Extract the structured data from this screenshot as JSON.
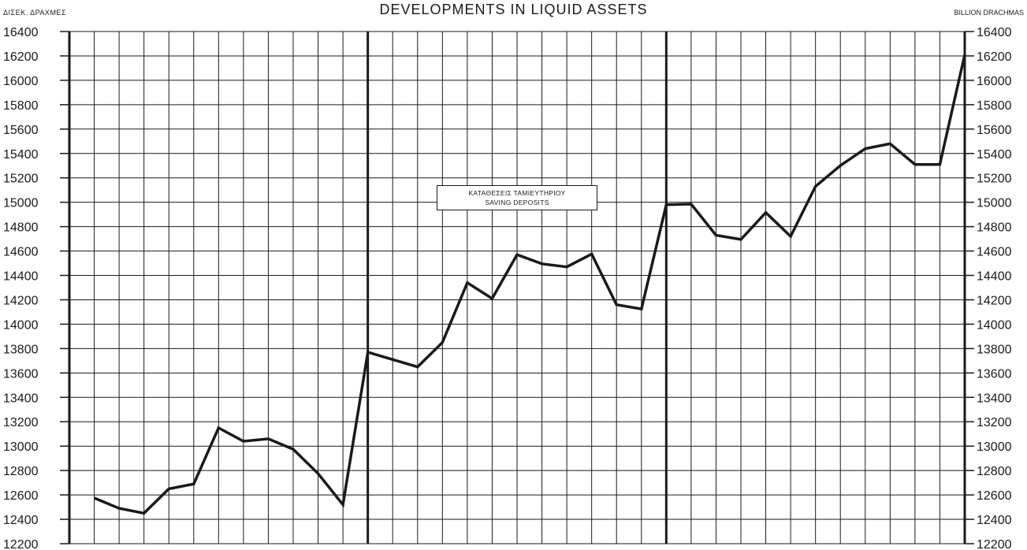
{
  "title": "DEVELOPMENTS IN LIQUID ASSETS",
  "unit_left": "ΔΙΣΕΚ. ΔΡΑΧΜΕΣ",
  "unit_right": "BILLION DRACHMAS",
  "annotation": {
    "line1": "ΚΑΤΑΘΕΣΕΙΣ ΤΑΜΙΕΥΤΗΡΙΟΥ",
    "line2": "SAVING DEPOSITS"
  },
  "colors": {
    "line": "#1a1a1a",
    "grid": "#1a1a1a",
    "background": "#ffffff"
  },
  "chart_data": {
    "type": "line",
    "title": "DEVELOPMENTS IN LIQUID ASSETS",
    "ylabel": "BILLION DRACHMAS",
    "xlabel": "",
    "ylim": [
      12200,
      16400
    ],
    "yticks": [
      12200,
      12400,
      12600,
      12800,
      13000,
      13200,
      13400,
      13600,
      13800,
      14000,
      14200,
      14400,
      14600,
      14800,
      15000,
      15200,
      15400,
      15600,
      15800,
      16000,
      16200,
      16400
    ],
    "grid": true,
    "year_groups": 3,
    "periods_per_group": 12,
    "series": [
      {
        "values": [
          12575,
          12490,
          12450,
          12650,
          12690,
          13150,
          13040,
          13060,
          12975,
          12775,
          12520,
          13770,
          13710,
          13650,
          13850,
          14340,
          14210,
          14570,
          14495,
          14470,
          14575,
          14160,
          14125,
          14980,
          14985,
          14730,
          14695,
          14915,
          14720,
          15130,
          15300,
          15440,
          15480,
          15310,
          15310,
          16210
        ]
      }
    ]
  }
}
